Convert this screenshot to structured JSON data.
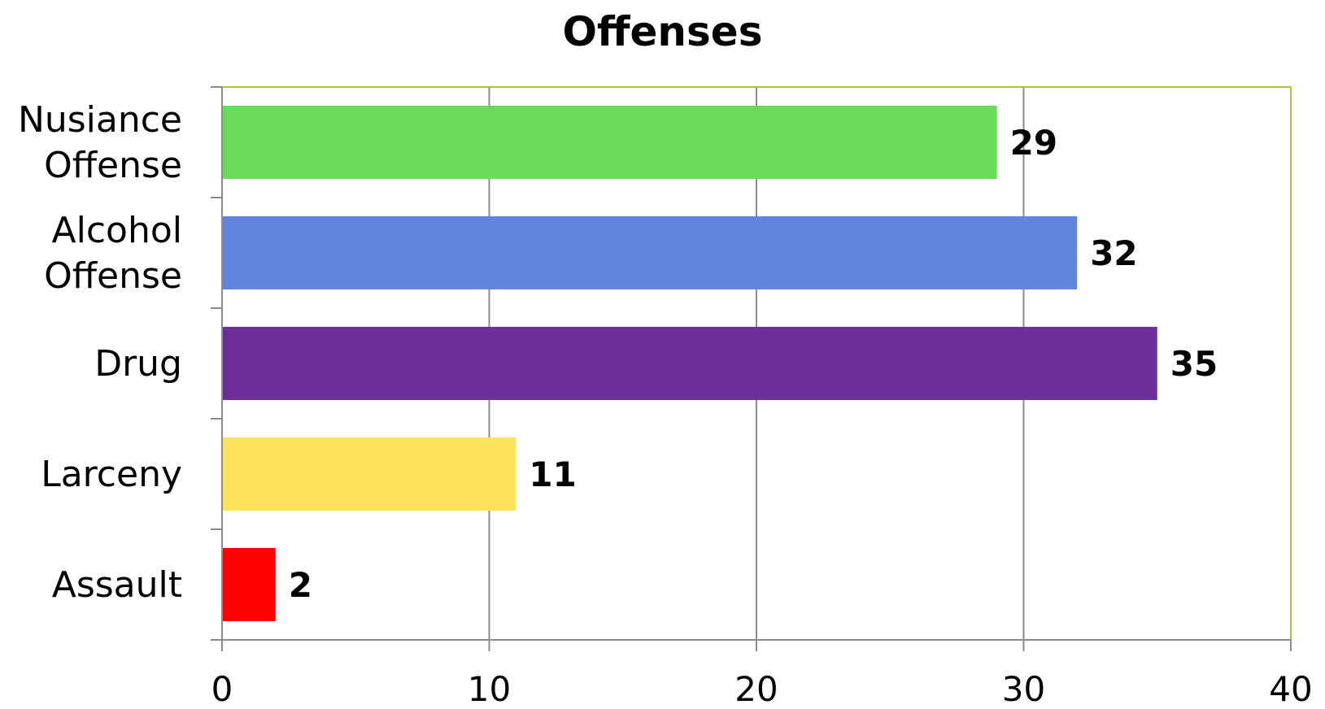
{
  "chart_data": {
    "type": "bar",
    "orientation": "horizontal",
    "title": "Offenses",
    "categories": [
      [
        "Nusiance",
        "Offense"
      ],
      [
        "Alcohol",
        "Offense"
      ],
      [
        "Drug"
      ],
      [
        "Larceny"
      ],
      [
        "Assault"
      ]
    ],
    "values": [
      29,
      32,
      35,
      11,
      2
    ],
    "data_labels": [
      "29",
      "32",
      "35",
      "11",
      "2"
    ],
    "colors": [
      "#6ADC5A",
      "#6184DC",
      "#6D309A",
      "#FDE45C",
      "#FF0000"
    ],
    "xlim": [
      0,
      40
    ],
    "x_ticks": [
      0,
      10,
      20,
      30,
      40
    ],
    "x_tick_labels": [
      "0",
      "10",
      "20",
      "30",
      "40"
    ],
    "grid": "vertical",
    "legend": "none",
    "plot_border_color": "#A8C440",
    "gridline_color": "#8C8C8C"
  }
}
